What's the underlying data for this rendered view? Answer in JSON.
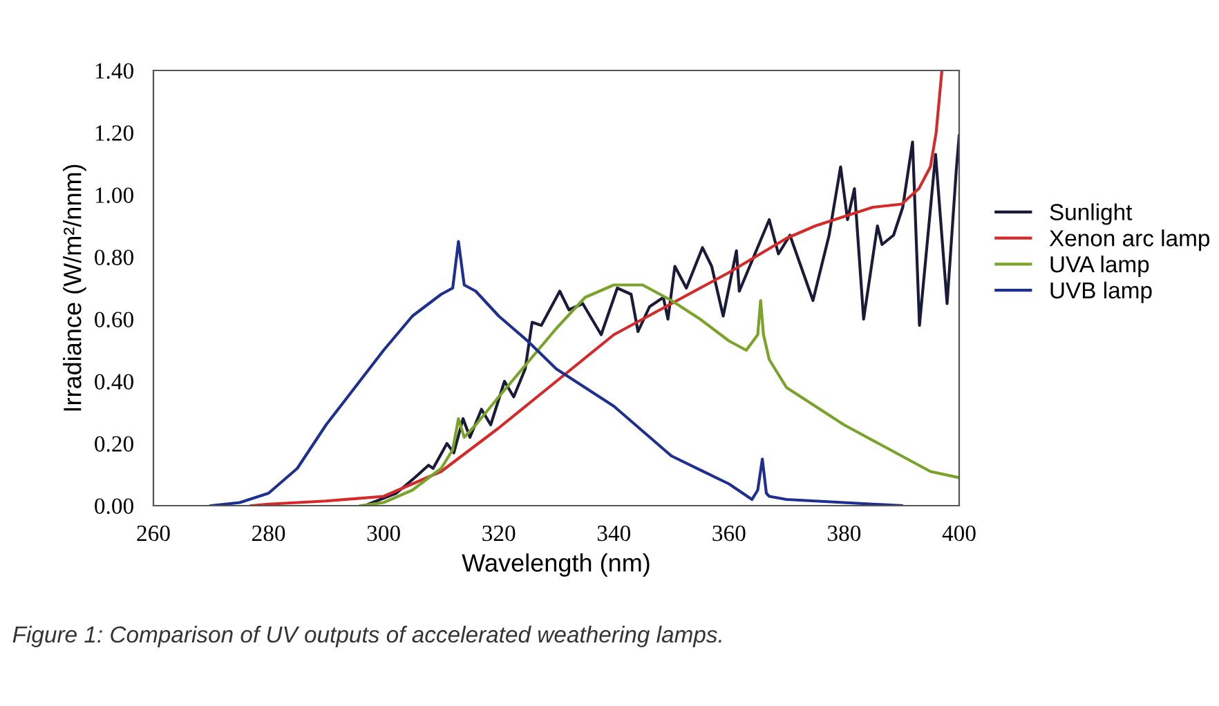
{
  "chart_data": {
    "type": "line",
    "xlabel": "Wavelength (nm)",
    "ylabel": "Irradiance (W/m²/nnm)",
    "annotations": [
      "Figure 1: Comparison of UV outputs of accelerated weathering lamps."
    ],
    "xlim": [
      260,
      400
    ],
    "ylim": [
      0,
      1.4
    ],
    "xticks": [
      260,
      280,
      300,
      320,
      340,
      360,
      380,
      400
    ],
    "yticks": [
      {
        "value": 0,
        "label": "0.00"
      },
      {
        "value": 0.2,
        "label": "0.20"
      },
      {
        "value": 0.4,
        "label": "0.40"
      },
      {
        "value": 0.6,
        "label": "0.60"
      },
      {
        "value": 0.8,
        "label": "0.80"
      },
      {
        "value": 1.0,
        "label": "1.00"
      },
      {
        "value": 1.2,
        "label": "1.20"
      },
      {
        "value": 1.4,
        "label": "1.40"
      }
    ],
    "grid": false,
    "legend": "right",
    "marker": "none",
    "line_style": "solid",
    "series": [
      {
        "name": "Sunlight",
        "color": "#1a1a3a",
        "x": [
          297.4,
          302.2,
          305.4,
          307.8,
          308.6,
          311.0,
          312.2,
          313.8,
          315.0,
          317.0,
          318.6,
          321.0,
          322.6,
          324.6,
          325.8,
          327.4,
          330.6,
          332.2,
          334.6,
          337.8,
          340.6,
          343.0,
          344.2,
          346.2,
          348.6,
          349.4,
          350.6,
          352.6,
          355.4,
          357.0,
          359.0,
          361.3,
          361.8,
          367.0,
          368.6,
          370.6,
          374.6,
          377.4,
          379.4,
          380.6,
          381.8,
          383.4,
          385.8,
          386.6,
          388.6,
          390.2,
          391.9,
          393.1,
          395.9,
          397.9,
          399.5,
          400
        ],
        "values": [
          0.005,
          0.04,
          0.09,
          0.13,
          0.12,
          0.2,
          0.17,
          0.28,
          0.22,
          0.31,
          0.26,
          0.4,
          0.35,
          0.44,
          0.59,
          0.58,
          0.69,
          0.63,
          0.65,
          0.55,
          0.7,
          0.68,
          0.56,
          0.64,
          0.67,
          0.6,
          0.77,
          0.7,
          0.83,
          0.77,
          0.61,
          0.82,
          0.69,
          0.92,
          0.81,
          0.87,
          0.66,
          0.87,
          1.09,
          0.92,
          1.02,
          0.6,
          0.9,
          0.84,
          0.87,
          0.96,
          1.17,
          0.58,
          1.13,
          0.65,
          1.08,
          1.19
        ]
      },
      {
        "name": "Xenon arc lamp",
        "color": "#d42a2a",
        "x": [
          277,
          280,
          290,
          300,
          305,
          310,
          320,
          330,
          340,
          350,
          360,
          370,
          375,
          380,
          385,
          390,
          393,
          395,
          396,
          397
        ],
        "values": [
          0,
          0.005,
          0.015,
          0.03,
          0.07,
          0.11,
          0.25,
          0.4,
          0.55,
          0.65,
          0.75,
          0.86,
          0.9,
          0.93,
          0.96,
          0.97,
          1.02,
          1.09,
          1.2,
          1.4
        ]
      },
      {
        "name": "UVA lamp",
        "color": "#7aa32a",
        "x": [
          296,
          300,
          305,
          310,
          312,
          313,
          314,
          316,
          320,
          325,
          330,
          335,
          340,
          345,
          350,
          355,
          360,
          363,
          365,
          365.5,
          366,
          367,
          370,
          380,
          390,
          395,
          400
        ],
        "values": [
          0,
          0.01,
          0.05,
          0.12,
          0.18,
          0.28,
          0.22,
          0.26,
          0.35,
          0.46,
          0.57,
          0.67,
          0.71,
          0.71,
          0.66,
          0.6,
          0.53,
          0.5,
          0.55,
          0.66,
          0.55,
          0.47,
          0.38,
          0.26,
          0.16,
          0.11,
          0.09
        ]
      },
      {
        "name": "UVB lamp",
        "color": "#1f2f8f",
        "x": [
          270,
          275,
          280,
          285,
          290,
          295,
          300,
          305,
          310,
          312,
          313,
          314,
          316,
          320,
          325,
          330,
          340,
          350,
          360,
          364,
          365,
          365.8,
          366.5,
          367,
          370,
          380,
          390
        ],
        "values": [
          0,
          0.01,
          0.04,
          0.12,
          0.26,
          0.38,
          0.5,
          0.61,
          0.68,
          0.7,
          0.85,
          0.71,
          0.69,
          0.61,
          0.53,
          0.44,
          0.32,
          0.16,
          0.07,
          0.02,
          0.05,
          0.15,
          0.04,
          0.03,
          0.02,
          0.01,
          0
        ]
      }
    ]
  }
}
